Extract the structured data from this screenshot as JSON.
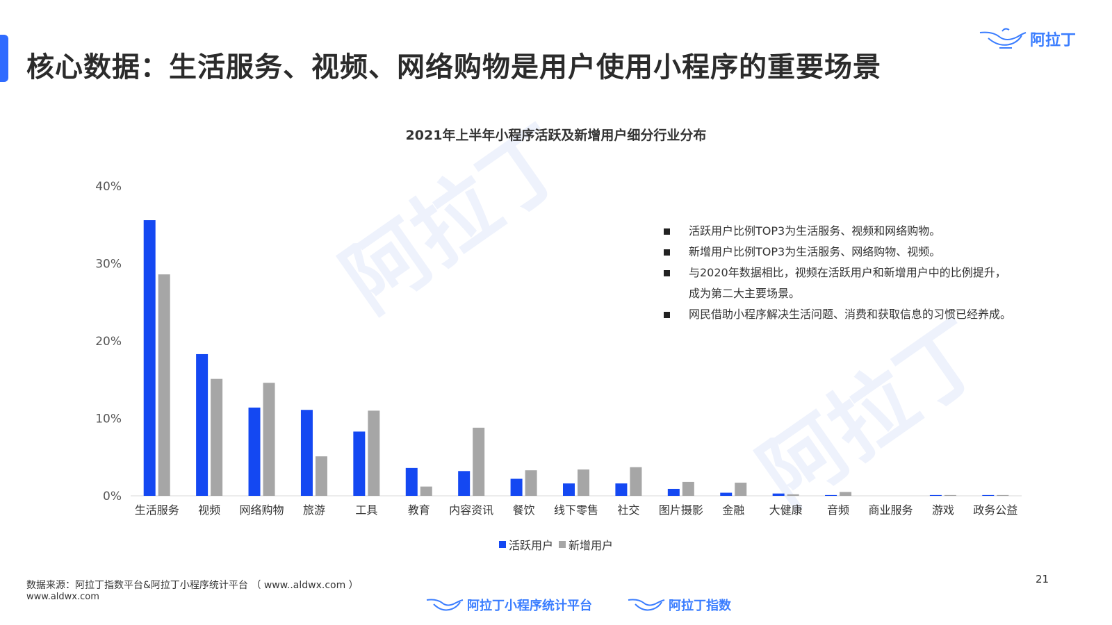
{
  "page": {
    "title": "核心数据：生活服务、视频、网络购物是用户使用小程序的重要场景",
    "brand": "阿拉丁",
    "page_number": "21",
    "source": "数据来源：阿拉丁指数平台&阿拉丁小程序统计平台 （ www..aldwx.com ）",
    "site": "www.aldwx.com",
    "footer_logos": [
      "阿拉丁小程序统计平台",
      "阿拉丁指数"
    ],
    "watermark": "阿拉丁",
    "notes": [
      "活跃用户比例TOP3为生活服务、视频和网络购物。",
      "新增用户比例TOP3为生活服务、网络购物、视频。",
      "与2020年数据相比，视频在活跃用户和新增用户中的比例提升，",
      "成为第二大主要场景。",
      "网民借助小程序解决生活问题、消费和获取信息的习惯已经养成。"
    ]
  },
  "colors": {
    "accent": "#2f6bff",
    "active": "#1448f2",
    "new": "#a6a6a6",
    "brand": "#3a7dff"
  },
  "chart_data": {
    "type": "bar",
    "title": "2021年上半年小程序活跃及新增用户细分行业分布",
    "categories": [
      "生活服务",
      "视频",
      "网络购物",
      "旅游",
      "工具",
      "教育",
      "内容资讯",
      "餐饮",
      "线下零售",
      "社交",
      "图片摄影",
      "金融",
      "大健康",
      "音频",
      "商业服务",
      "游戏",
      "政务公益"
    ],
    "series": [
      {
        "name": "活跃用户",
        "values": [
          35.6,
          18.3,
          11.4,
          11.1,
          8.3,
          3.6,
          3.2,
          2.2,
          1.6,
          1.6,
          0.9,
          0.4,
          0.3,
          0.1,
          0.0,
          0.1,
          0.1
        ]
      },
      {
        "name": "新增用户",
        "values": [
          28.6,
          15.1,
          14.6,
          5.1,
          11.0,
          1.2,
          8.8,
          3.3,
          3.4,
          3.7,
          1.8,
          1.7,
          0.2,
          0.5,
          0.0,
          0.1,
          0.1
        ]
      }
    ],
    "ylim": [
      0,
      40
    ],
    "yticks": [
      0,
      10,
      20,
      30,
      40
    ],
    "ytick_labels": [
      "0%",
      "10%",
      "20%",
      "30%",
      "40%"
    ],
    "grid": false,
    "legend_position": "bottom"
  }
}
